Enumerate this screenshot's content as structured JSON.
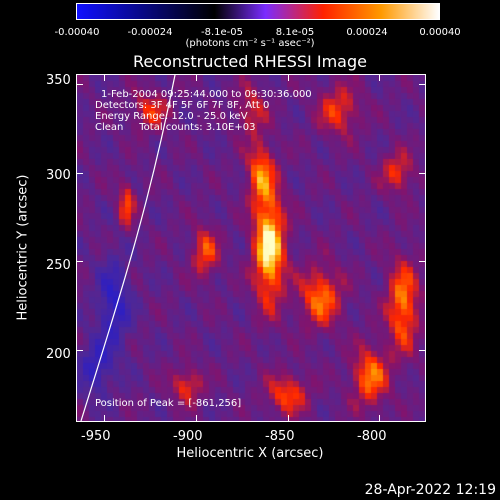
{
  "colorbar": {
    "ticks": [
      "-0.00040",
      "-0.00024",
      "-8.1e-05",
      "8.1e-05",
      "0.00024",
      "0.00040"
    ],
    "unit": "(photons cm⁻² s⁻¹ asec⁻²)",
    "colors": [
      "#1010ff",
      "#000000",
      "#7a2cff",
      "#ff2200",
      "#ff9900",
      "#ffffff"
    ]
  },
  "title": "Reconstructed RHESSI Image",
  "info": {
    "time": "1-Feb-2004 09:25:44.000 to 09:30:36.000",
    "detectors": "Detectors: 3F 4F 5F 6F 7F 8F, Att 0",
    "energy": "Energy Range: 12.0 - 25.0 keV",
    "clean": "Clean     Total counts: 3.10E+03",
    "peak": "Position of Peak = [-861,256]"
  },
  "timestamp": "28-Apr-2022 12:19",
  "chart_data": {
    "type": "heatmap",
    "title": "Reconstructed RHESSI Image",
    "xlabel": "Heliocentric X (arcsec)",
    "ylabel": "Heliocentric Y (arcsec)",
    "xlim": [
      -965,
      -775
    ],
    "ylim": [
      160,
      355
    ],
    "xticks": [
      "-950",
      "-900",
      "-850",
      "-800"
    ],
    "yticks": [
      "200",
      "250",
      "300",
      "350"
    ],
    "xtick_values": [
      -950,
      -900,
      -850,
      -800
    ],
    "ytick_values": [
      200,
      250,
      300,
      350
    ],
    "zlim": [
      -0.0004,
      0.0004
    ],
    "peak": [
      -861,
      256
    ],
    "sources": [
      {
        "x": -860,
        "y": 258,
        "amp": 1.0,
        "sx": 6,
        "sy": 22
      },
      {
        "x": -865,
        "y": 300,
        "amp": 0.6,
        "sx": 5,
        "sy": 12
      },
      {
        "x": -832,
        "y": 230,
        "amp": 0.65,
        "sx": 8,
        "sy": 12
      },
      {
        "x": -787,
        "y": 225,
        "amp": 0.7,
        "sx": 6,
        "sy": 18
      },
      {
        "x": -805,
        "y": 185,
        "amp": 0.65,
        "sx": 7,
        "sy": 12
      },
      {
        "x": -850,
        "y": 175,
        "amp": 0.55,
        "sx": 8,
        "sy": 8
      },
      {
        "x": -895,
        "y": 255,
        "amp": 0.55,
        "sx": 5,
        "sy": 10
      },
      {
        "x": -938,
        "y": 282,
        "amp": 0.55,
        "sx": 3,
        "sy": 9
      },
      {
        "x": -905,
        "y": 180,
        "amp": 0.5,
        "sx": 6,
        "sy": 7
      },
      {
        "x": -822,
        "y": 335,
        "amp": 0.5,
        "sx": 8,
        "sy": 10
      },
      {
        "x": -925,
        "y": 335,
        "amp": 0.45,
        "sx": 7,
        "sy": 8
      },
      {
        "x": -790,
        "y": 300,
        "amp": 0.5,
        "sx": 6,
        "sy": 8
      },
      {
        "x": -870,
        "y": 335,
        "amp": 0.4,
        "sx": 6,
        "sy": 10
      },
      {
        "x": -945,
        "y": 225,
        "amp": -0.5,
        "sx": 6,
        "sy": 18
      },
      {
        "x": -955,
        "y": 190,
        "amp": -0.45,
        "sx": 6,
        "sy": 10
      }
    ]
  }
}
